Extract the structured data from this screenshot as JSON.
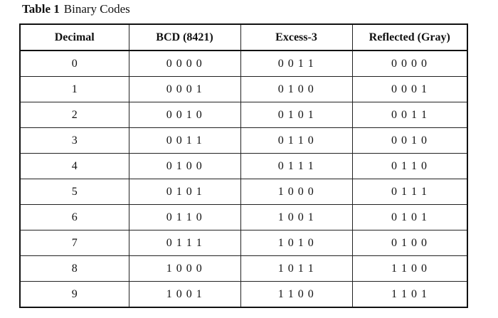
{
  "caption": {
    "label": "Table 1",
    "text": "Binary Codes"
  },
  "table": {
    "header": [
      "Decimal",
      "BCD (8421)",
      "Excess-3",
      "Reflected (Gray)"
    ],
    "rows": [
      [
        "0",
        "0 0 0 0",
        "0 0 1 1",
        "0 0 0 0"
      ],
      [
        "1",
        "0 0 0 1",
        "0 1 0 0",
        "0 0 0 1"
      ],
      [
        "2",
        "0 0 1 0",
        "0 1 0 1",
        "0 0 1 1"
      ],
      [
        "3",
        "0 0 1 1",
        "0 1 1 0",
        "0 0 1 0"
      ],
      [
        "4",
        "0 1 0 0",
        "0 1 1 1",
        "0 1 1 0"
      ],
      [
        "5",
        "0 1 0 1",
        "1 0 0 0",
        "0 1 1 1"
      ],
      [
        "6",
        "0 1 1 0",
        "1 0 0 1",
        "0 1 0 1"
      ],
      [
        "7",
        "0 1 1 1",
        "1 0 1 0",
        "0 1 0 0"
      ],
      [
        "8",
        "1 0 0 0",
        "1 0 1 1",
        "1 1 0 0"
      ],
      [
        "9",
        "1 0 0 1",
        "1 1 0 0",
        "1 1 0 1"
      ]
    ]
  }
}
